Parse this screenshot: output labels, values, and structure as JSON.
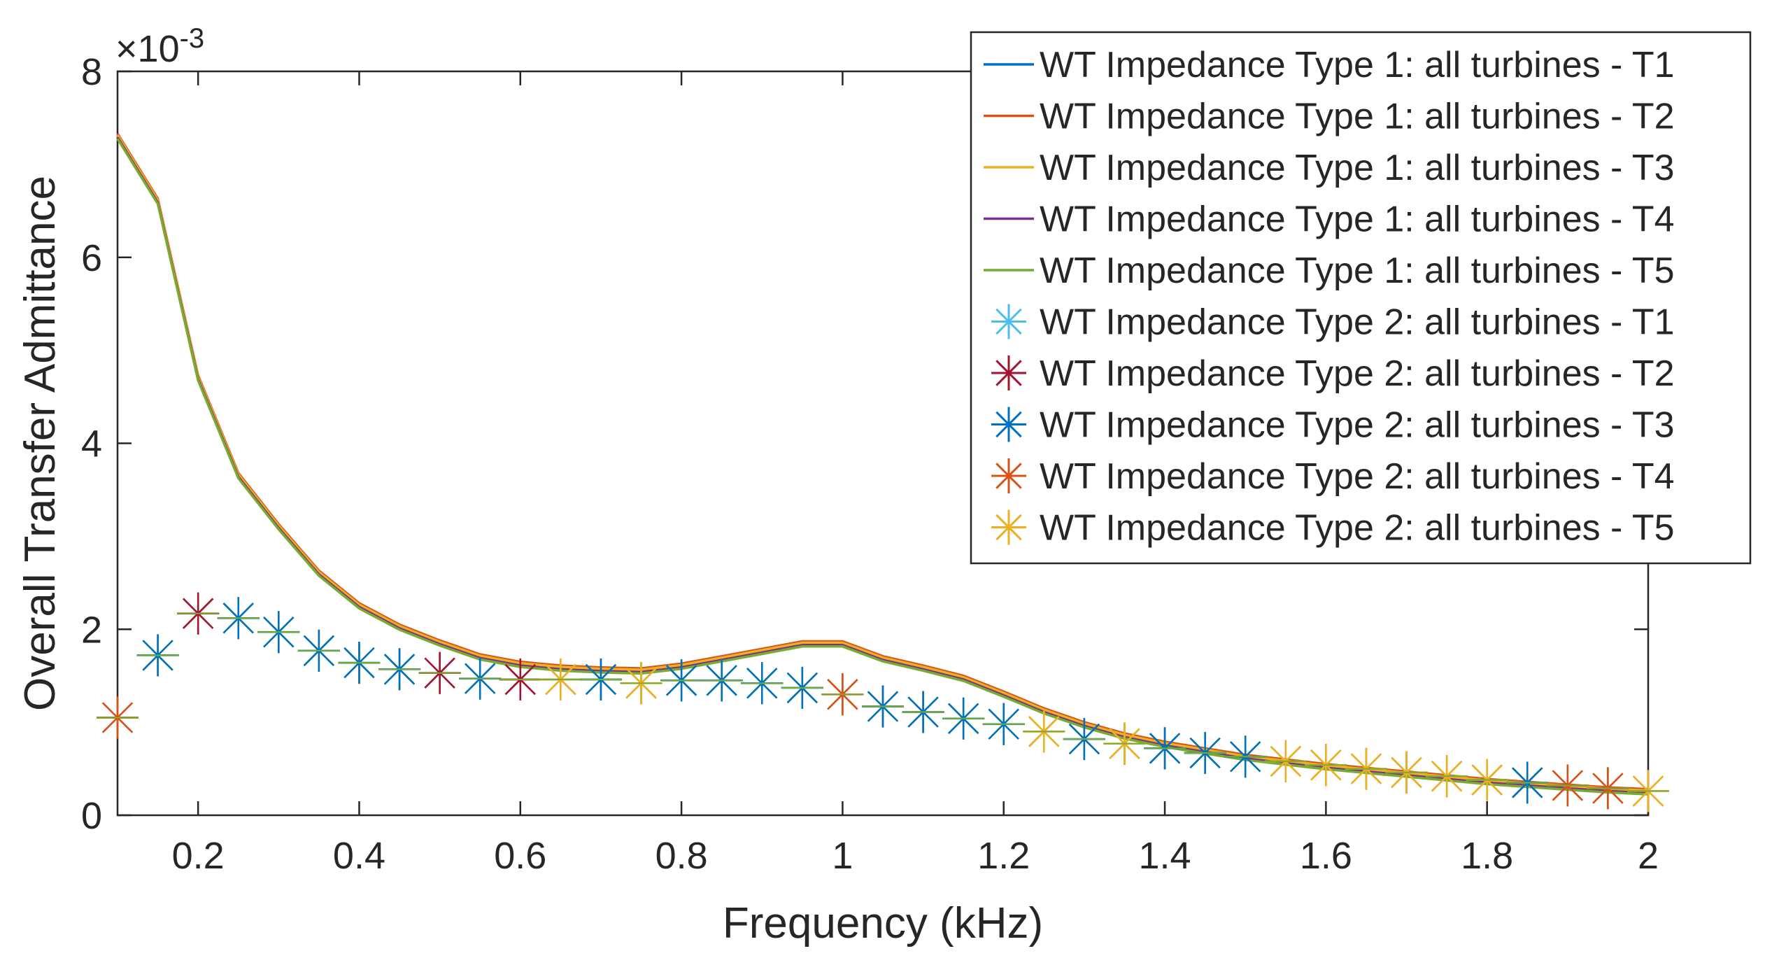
{
  "chart_data": {
    "type": "line",
    "title": "",
    "xlabel": "Frequency (kHz)",
    "ylabel": "Overall Transfer Admittance",
    "y_exponent_label": "×10",
    "y_exponent_power": "-3",
    "xlim": [
      0.1,
      2.0
    ],
    "ylim": [
      0,
      8
    ],
    "x_ticks": [
      0.2,
      0.4,
      0.6,
      0.8,
      1.0,
      1.2,
      1.4,
      1.6,
      1.8,
      2.0
    ],
    "x_tick_labels": [
      "0.2",
      "0.4",
      "0.6",
      "0.8",
      "1",
      "1.2",
      "1.4",
      "1.6",
      "1.8",
      "2"
    ],
    "y_ticks": [
      0,
      2,
      4,
      6,
      8
    ],
    "y_tick_labels": [
      "0",
      "2",
      "4",
      "6",
      "8"
    ],
    "grid": false,
    "legend_position": "top-right",
    "x": [
      0.1,
      0.15,
      0.2,
      0.25,
      0.3,
      0.35,
      0.4,
      0.45,
      0.5,
      0.55,
      0.6,
      0.65,
      0.7,
      0.75,
      0.8,
      0.85,
      0.9,
      0.95,
      1.0,
      1.05,
      1.1,
      1.15,
      1.2,
      1.25,
      1.3,
      1.35,
      1.4,
      1.45,
      1.5,
      1.55,
      1.6,
      1.65,
      1.7,
      1.75,
      1.8,
      1.85,
      1.9,
      1.95,
      2.0
    ],
    "line_values": [
      7.3,
      6.6,
      4.7,
      3.65,
      3.1,
      2.6,
      2.25,
      2.02,
      1.85,
      1.7,
      1.62,
      1.58,
      1.56,
      1.55,
      1.6,
      1.68,
      1.76,
      1.84,
      1.84,
      1.68,
      1.58,
      1.47,
      1.3,
      1.12,
      0.97,
      0.85,
      0.76,
      0.69,
      0.62,
      0.57,
      0.52,
      0.48,
      0.44,
      0.4,
      0.36,
      0.33,
      0.3,
      0.27,
      0.25
    ],
    "marker_values": [
      1.05,
      1.72,
      2.17,
      2.12,
      1.97,
      1.77,
      1.64,
      1.57,
      1.53,
      1.47,
      1.46,
      1.46,
      1.46,
      1.42,
      1.45,
      1.45,
      1.42,
      1.37,
      1.3,
      1.17,
      1.11,
      1.04,
      0.98,
      0.9,
      0.82,
      0.77,
      0.72,
      0.67,
      0.63,
      0.58,
      0.54,
      0.5,
      0.46,
      0.42,
      0.38,
      0.35,
      0.32,
      0.29,
      0.26
    ],
    "marker_top_series_index": [
      3,
      2,
      1,
      2,
      2,
      2,
      2,
      2,
      1,
      2,
      1,
      4,
      2,
      4,
      2,
      2,
      2,
      2,
      3,
      2,
      2,
      2,
      2,
      4,
      2,
      4,
      2,
      2,
      2,
      4,
      4,
      4,
      4,
      4,
      4,
      2,
      3,
      3,
      4
    ],
    "series": [
      {
        "name": "WT Impedance Type 1: all turbines - T1",
        "style": "line",
        "color": "#0072BD",
        "offset": 0.0
      },
      {
        "name": "WT Impedance Type 1: all turbines - T2",
        "style": "line",
        "color": "#D95319",
        "offset": 0.03
      },
      {
        "name": "WT Impedance Type 1: all turbines - T3",
        "style": "line",
        "color": "#EDB120",
        "offset": 0.015
      },
      {
        "name": "WT Impedance Type 1: all turbines - T4",
        "style": "line",
        "color": "#7E2F8E",
        "offset": -0.01
      },
      {
        "name": "WT Impedance Type 1: all turbines - T5",
        "style": "line",
        "color": "#77AC30",
        "offset": -0.025
      },
      {
        "name": "WT Impedance Type 2: all turbines - T1",
        "style": "marker",
        "color": "#4DBEEE"
      },
      {
        "name": "WT Impedance Type 2: all turbines - T2",
        "style": "marker",
        "color": "#A2142F"
      },
      {
        "name": "WT Impedance Type 2: all turbines - T3",
        "style": "marker",
        "color": "#0072BD"
      },
      {
        "name": "WT Impedance Type 2: all turbines - T4",
        "style": "marker",
        "color": "#D95319"
      },
      {
        "name": "WT Impedance Type 2: all turbines - T5",
        "style": "marker",
        "color": "#EDB120"
      }
    ],
    "marker_overlay_colors": [
      "#77AC30",
      "#4DBEEE",
      "#A2142F",
      "#D95319",
      "#EDB120"
    ]
  }
}
